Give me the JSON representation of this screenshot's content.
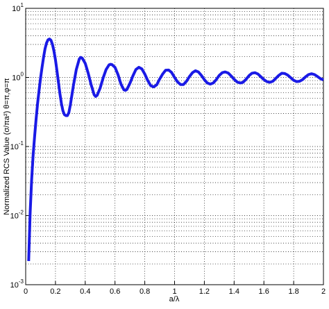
{
  "chart_data": {
    "type": "line",
    "xlabel": "a/λ",
    "ylabel": "Normalized RCS Value (σ/πa²) θ=π,φ=π",
    "xlim": [
      0,
      2
    ],
    "xticks": [
      0,
      0.2,
      0.4,
      0.6,
      0.8,
      1,
      1.2,
      1.4,
      1.6,
      1.8,
      2
    ],
    "ylim": [
      0.001,
      10
    ],
    "yscale": "log",
    "yticks": [
      {
        "value": 0.001,
        "label": "10",
        "exponent": "-3"
      },
      {
        "value": 0.01,
        "label": "10",
        "exponent": "-2"
      },
      {
        "value": 0.1,
        "label": "10",
        "exponent": "-1"
      },
      {
        "value": 1,
        "label": "10",
        "exponent": "0"
      },
      {
        "value": 10,
        "label": "10",
        "exponent": "1"
      }
    ],
    "grid": true,
    "minor_grid": true,
    "series": [
      {
        "color": "#1a1ae6",
        "x": [
          0.02,
          0.03,
          0.04,
          0.05,
          0.06,
          0.07,
          0.08,
          0.09,
          0.1,
          0.11,
          0.12,
          0.13,
          0.14,
          0.15,
          0.16,
          0.17,
          0.18,
          0.19,
          0.2,
          0.21,
          0.22,
          0.23,
          0.24,
          0.25,
          0.26,
          0.27,
          0.28,
          0.29,
          0.3,
          0.32,
          0.34,
          0.36,
          0.37,
          0.38,
          0.4,
          0.42,
          0.44,
          0.46,
          0.47,
          0.48,
          0.5,
          0.52,
          0.54,
          0.56,
          0.57,
          0.58,
          0.6,
          0.62,
          0.64,
          0.66,
          0.67,
          0.68,
          0.7,
          0.72,
          0.74,
          0.76,
          0.78,
          0.8,
          0.82,
          0.84,
          0.86,
          0.88,
          0.9,
          0.92,
          0.94,
          0.96,
          0.98,
          1.0,
          1.02,
          1.04,
          1.06,
          1.08,
          1.1,
          1.12,
          1.14,
          1.16,
          1.18,
          1.2,
          1.22,
          1.24,
          1.26,
          1.28,
          1.3,
          1.32,
          1.34,
          1.36,
          1.38,
          1.4,
          1.42,
          1.44,
          1.46,
          1.48,
          1.5,
          1.52,
          1.54,
          1.56,
          1.58,
          1.6,
          1.62,
          1.64,
          1.66,
          1.68,
          1.7,
          1.72,
          1.74,
          1.76,
          1.78,
          1.8,
          1.82,
          1.84,
          1.86,
          1.88,
          1.9,
          1.92,
          1.94,
          1.96,
          1.98,
          2.0
        ],
        "values": [
          0.0022,
          0.011,
          0.033,
          0.075,
          0.14,
          0.25,
          0.42,
          0.65,
          0.98,
          1.4,
          1.95,
          2.6,
          3.15,
          3.5,
          3.6,
          3.45,
          3.0,
          2.4,
          1.8,
          1.25,
          0.85,
          0.58,
          0.42,
          0.33,
          0.29,
          0.28,
          0.28,
          0.31,
          0.4,
          0.75,
          1.3,
          1.85,
          1.95,
          1.9,
          1.6,
          1.15,
          0.78,
          0.56,
          0.53,
          0.55,
          0.7,
          0.98,
          1.3,
          1.52,
          1.55,
          1.53,
          1.4,
          1.1,
          0.8,
          0.66,
          0.65,
          0.67,
          0.82,
          1.05,
          1.3,
          1.4,
          1.33,
          1.12,
          0.9,
          0.76,
          0.73,
          0.78,
          0.95,
          1.12,
          1.27,
          1.28,
          1.18,
          1.0,
          0.86,
          0.79,
          0.79,
          0.88,
          1.03,
          1.17,
          1.25,
          1.2,
          1.07,
          0.93,
          0.83,
          0.8,
          0.83,
          0.93,
          1.07,
          1.17,
          1.2,
          1.16,
          1.05,
          0.94,
          0.86,
          0.83,
          0.85,
          0.94,
          1.06,
          1.15,
          1.17,
          1.12,
          1.02,
          0.93,
          0.87,
          0.85,
          0.88,
          0.97,
          1.07,
          1.15,
          1.14,
          1.08,
          0.99,
          0.91,
          0.87,
          0.88,
          0.93,
          1.02,
          1.1,
          1.13,
          1.1,
          1.03,
          0.96,
          0.92
        ]
      }
    ]
  }
}
